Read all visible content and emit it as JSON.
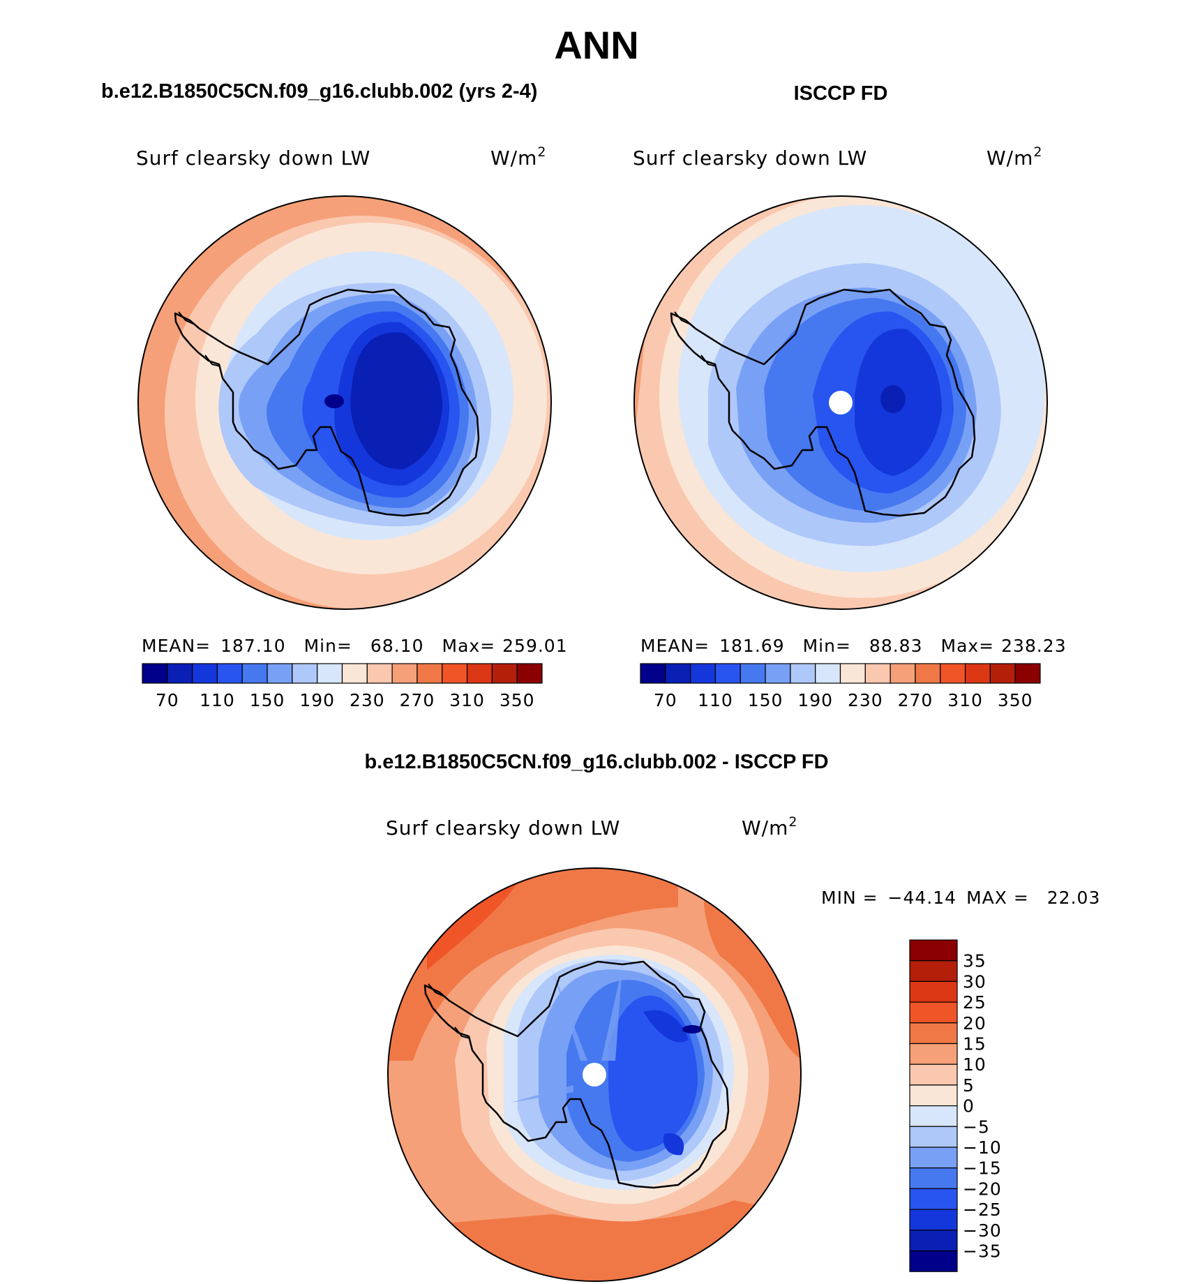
{
  "chart_data": [
    {
      "type": "polar_contour_map",
      "title": "b.e12.B1850C5CN.f09_g16.clubb.002 (yrs 2-4)",
      "variable": "Surf clearsky down LW",
      "units_base": "W/m",
      "units_exp": "2",
      "stats": {
        "mean_label": "MEAN=",
        "mean": "187.10",
        "min_label": "Min=",
        "min": "68.10",
        "max_label": "Max=",
        "max": "259.01"
      },
      "levels": [
        "70",
        "110",
        "150",
        "190",
        "230",
        "270",
        "310",
        "350"
      ]
    },
    {
      "type": "polar_contour_map",
      "title": "ISCCP FD",
      "variable": "Surf clearsky down LW",
      "units_base": "W/m",
      "units_exp": "2",
      "stats": {
        "mean_label": "MEAN=",
        "mean": "181.69",
        "min_label": "Min=",
        "min": "88.83",
        "max_label": "Max=",
        "max": "238.23"
      },
      "levels": [
        "70",
        "110",
        "150",
        "190",
        "230",
        "270",
        "310",
        "350"
      ]
    },
    {
      "type": "polar_contour_map",
      "title": "b.e12.B1850C5CN.f09_g16.clubb.002 - ISCCP FD",
      "variable": "Surf clearsky down LW",
      "units_base": "W/m",
      "units_exp": "2",
      "stats": {
        "min_label": "MIN =",
        "min": "−44.14",
        "max_label": "MAX =",
        "max": "22.03"
      },
      "levels": [
        "35",
        "30",
        "25",
        "20",
        "15",
        "10",
        "5",
        "0",
        "−5",
        "−10",
        "−15",
        "−20",
        "−25",
        "−30",
        "−35"
      ]
    }
  ],
  "season": "ANN",
  "colors": {
    "abs_scale": [
      "#00008b",
      "#0a1fb4",
      "#1437dc",
      "#2855f0",
      "#4678f0",
      "#78a0f5",
      "#afc8fa",
      "#d7e6fa",
      "#fae6d7",
      "#fac8af",
      "#f5a078",
      "#f07846",
      "#f05528",
      "#dc3714",
      "#b41f0a",
      "#8b0000"
    ],
    "diff_scale": [
      "#8b0000",
      "#b41f0a",
      "#dc3714",
      "#f05528",
      "#f07846",
      "#f5a078",
      "#fac8af",
      "#fae6d7",
      "#d7e6fa",
      "#afc8fa",
      "#78a0f5",
      "#4678f0",
      "#2855f0",
      "#1437dc",
      "#0a1fb4",
      "#00008b"
    ]
  }
}
